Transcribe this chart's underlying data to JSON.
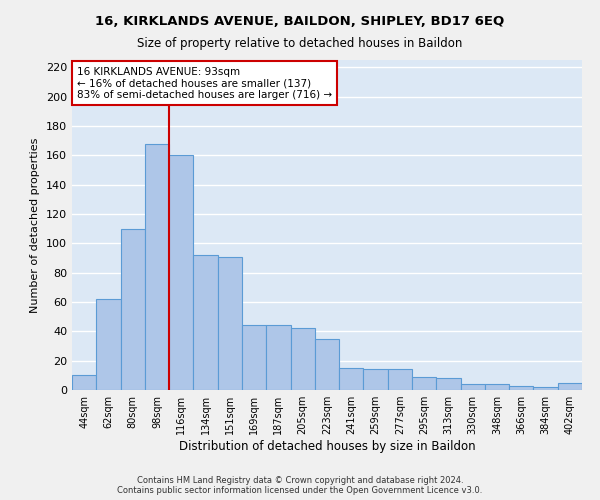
{
  "title1": "16, KIRKLANDS AVENUE, BAILDON, SHIPLEY, BD17 6EQ",
  "title2": "Size of property relative to detached houses in Baildon",
  "xlabel": "Distribution of detached houses by size in Baildon",
  "ylabel": "Number of detached properties",
  "categories": [
    "44sqm",
    "62sqm",
    "80sqm",
    "98sqm",
    "116sqm",
    "134sqm",
    "151sqm",
    "169sqm",
    "187sqm",
    "205sqm",
    "223sqm",
    "241sqm",
    "259sqm",
    "277sqm",
    "295sqm",
    "313sqm",
    "330sqm",
    "348sqm",
    "366sqm",
    "384sqm",
    "402sqm"
  ],
  "values": [
    10,
    62,
    110,
    168,
    160,
    92,
    91,
    44,
    44,
    42,
    35,
    15,
    14,
    14,
    9,
    8,
    4,
    4,
    3,
    2,
    5
  ],
  "bar_color": "#aec6e8",
  "bar_edge_color": "#5b9bd5",
  "vline_x": 3.5,
  "vline_color": "#cc0000",
  "annotation_text": "16 KIRKLANDS AVENUE: 93sqm\n← 16% of detached houses are smaller (137)\n83% of semi-detached houses are larger (716) →",
  "annotation_box_color": "#ffffff",
  "annotation_box_edge": "#cc0000",
  "ylim": [
    0,
    225
  ],
  "yticks": [
    0,
    20,
    40,
    60,
    80,
    100,
    120,
    140,
    160,
    180,
    200,
    220
  ],
  "background_color": "#dce8f5",
  "fig_color": "#f0f0f0",
  "grid_color": "#ffffff",
  "footer": "Contains HM Land Registry data © Crown copyright and database right 2024.\nContains public sector information licensed under the Open Government Licence v3.0."
}
